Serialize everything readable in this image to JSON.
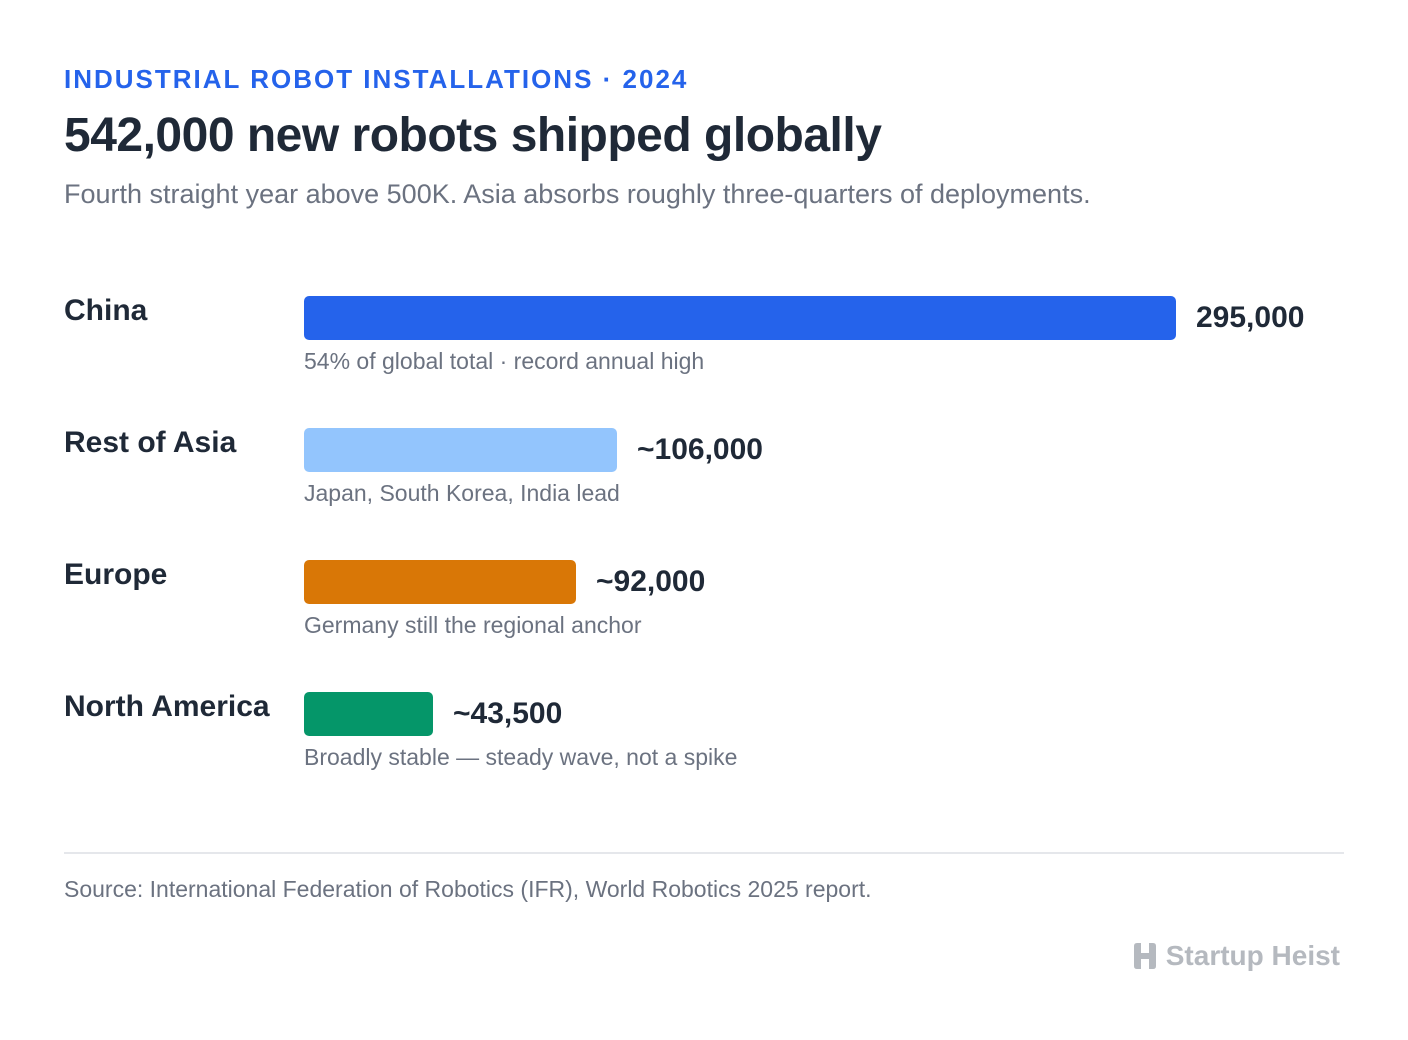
{
  "header": {
    "eyebrow": "INDUSTRIAL ROBOT INSTALLATIONS · 2024",
    "title": "542,000 new robots shipped globally",
    "subtitle": "Fourth straight year above 500K. Asia absorbs roughly three-quarters of deployments."
  },
  "chart_data": {
    "type": "bar",
    "orientation": "horizontal",
    "categories": [
      "China",
      "Rest of Asia",
      "Europe",
      "North America"
    ],
    "values": [
      295000,
      106000,
      92000,
      43500
    ],
    "value_labels": [
      "295,000",
      "~106,000",
      "~92,000",
      "~43,500"
    ],
    "notes": [
      "54% of global total · record annual high",
      "Japan, South Korea, India lead",
      "Germany still the regional anchor",
      "Broadly stable — steady wave, not a spike"
    ],
    "colors": [
      "#2563eb",
      "#93c5fd",
      "#d97706",
      "#059669"
    ],
    "grid": false,
    "legend": "none"
  },
  "footer": {
    "source": "Source: International Federation of Robotics (IFR), World Robotics 2025 report.",
    "brand": "Startup Heist",
    "brand_icon": "building-logo-icon"
  }
}
